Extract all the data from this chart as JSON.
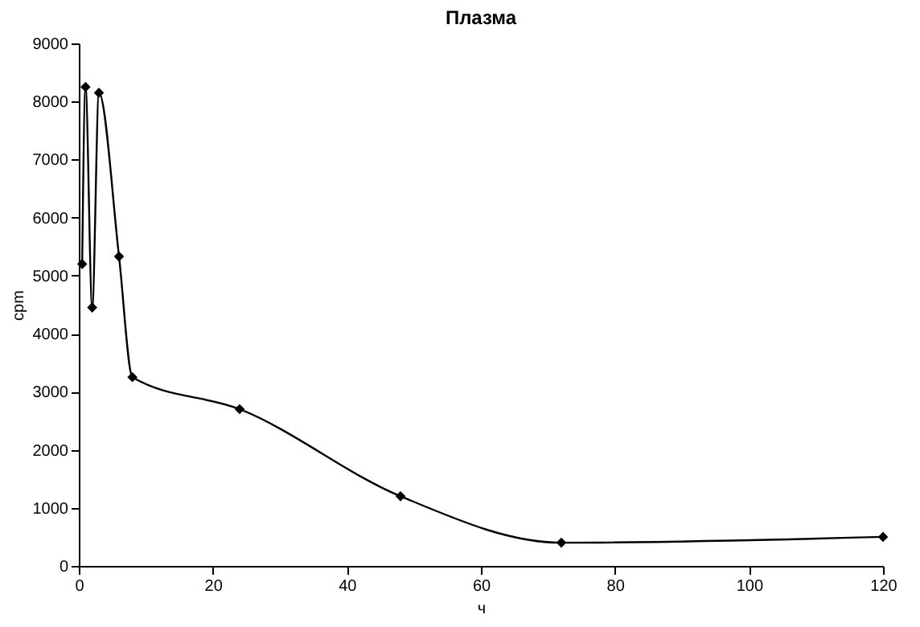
{
  "chart_data": {
    "type": "line",
    "title": "Плазма",
    "xlabel": "ч",
    "ylabel": "cpm",
    "x": [
      0.5,
      1,
      2,
      3,
      6,
      8,
      24,
      48,
      72,
      120
    ],
    "series": [
      {
        "color": "#000000",
        "values": [
          5200,
          8250,
          4450,
          8150,
          5330,
          3250,
          2700,
          1200,
          400,
          500
        ]
      }
    ],
    "xlim": [
      0,
      120
    ],
    "xticks": [
      0,
      20,
      40,
      60,
      80,
      100,
      120
    ],
    "ylim": [
      0,
      9000
    ],
    "yticks": [
      0,
      1000,
      2000,
      3000,
      4000,
      5000,
      6000,
      7000,
      8000,
      9000
    ],
    "grid": false,
    "marker": "diamond",
    "line_style": "solid"
  }
}
